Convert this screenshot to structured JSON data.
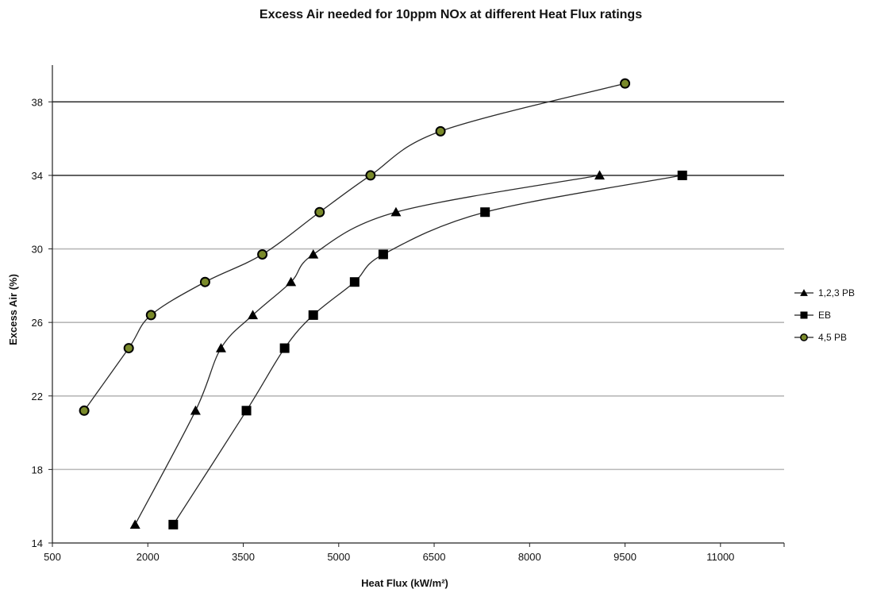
{
  "chart_data": {
    "type": "scatter",
    "title": "Excess Air  needed for 10ppm NOx at different Heat Flux ratings",
    "xlabel": "Heat Flux (kW/m²)",
    "ylabel": "Excess Air (%)",
    "xlim": [
      500,
      12000
    ],
    "ylim": [
      14,
      40
    ],
    "xticks": [
      500,
      2000,
      3500,
      5000,
      6500,
      8000,
      9500,
      11000
    ],
    "yticks": [
      14,
      18,
      22,
      26,
      30,
      34,
      38
    ],
    "gridlines_y": [
      18,
      22,
      26,
      30,
      34,
      38
    ],
    "emphasized_gridlines_y": [
      34,
      38
    ],
    "legend_position": "right",
    "series": [
      {
        "name": "1,2,3 PB",
        "marker": "triangle",
        "color": "#000000",
        "x": [
          1800,
          2750,
          3150,
          3650,
          4250,
          4600,
          5900,
          9100
        ],
        "y": [
          15,
          21.2,
          24.6,
          26.4,
          28.2,
          29.7,
          32,
          34
        ]
      },
      {
        "name": "EB",
        "marker": "square",
        "color": "#000000",
        "x": [
          2400,
          3550,
          4150,
          4600,
          5250,
          5700,
          7300,
          10400
        ],
        "y": [
          15,
          21.2,
          24.6,
          26.4,
          28.2,
          29.7,
          32,
          34
        ]
      },
      {
        "name": "4,5 PB",
        "marker": "circle",
        "color": "#7a8a2a",
        "x": [
          1000,
          1700,
          2050,
          2900,
          3800,
          4700,
          5500,
          6600,
          9500
        ],
        "y": [
          21.2,
          24.6,
          26.4,
          28.2,
          29.7,
          32,
          34,
          36.4,
          39
        ]
      }
    ]
  }
}
